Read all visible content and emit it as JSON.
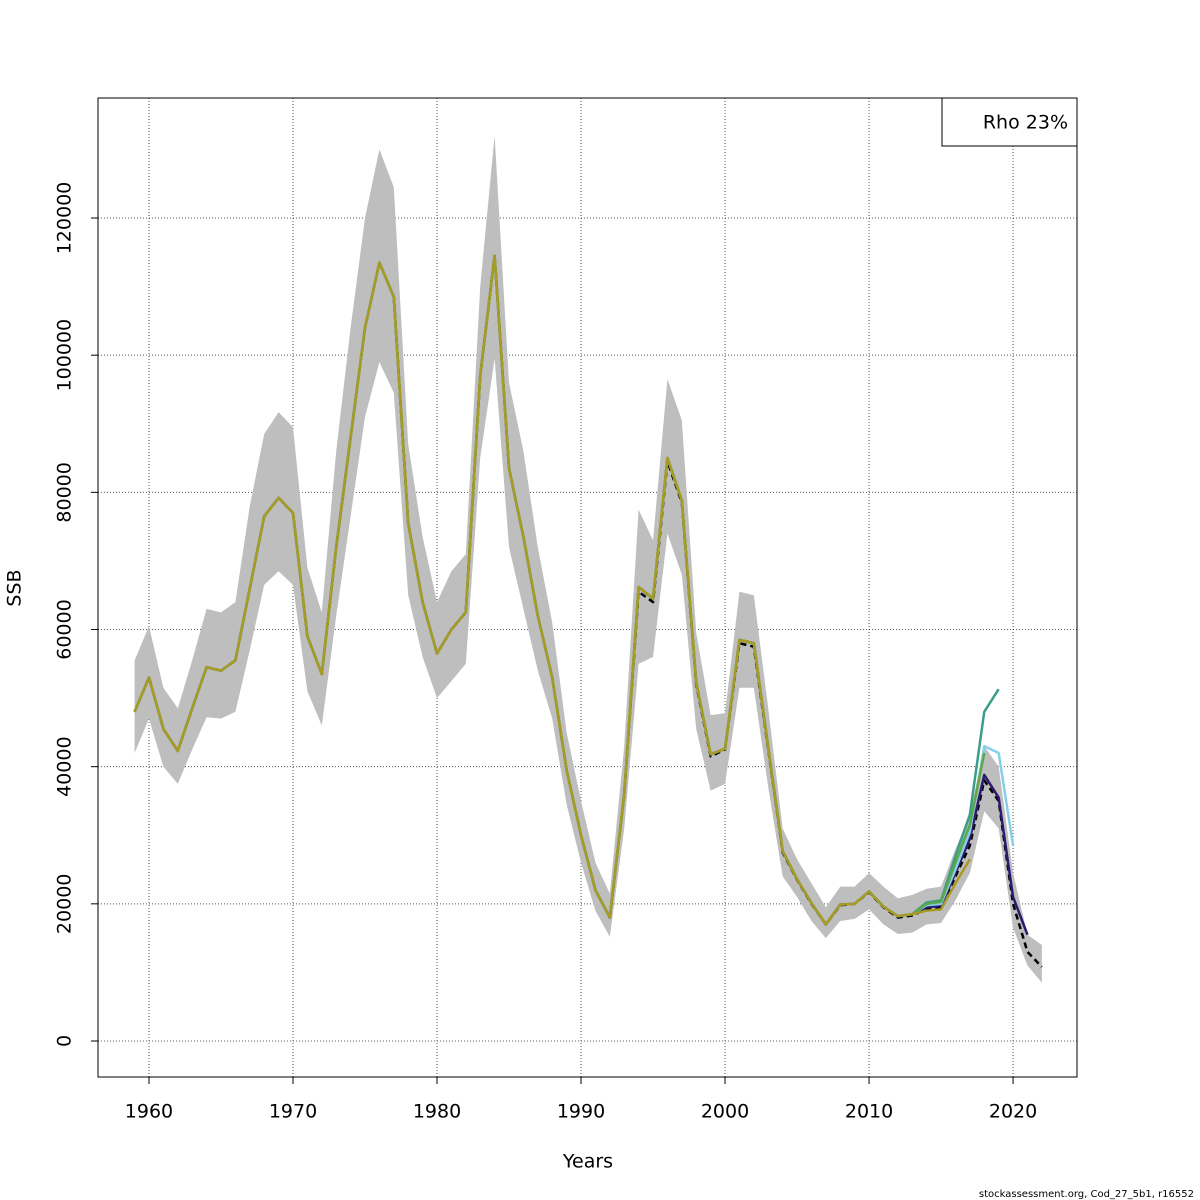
{
  "chart_data": {
    "type": "line",
    "x_label": "Years",
    "y_label": "SSB",
    "legend_text": "Rho 23%",
    "legend_position": "top-right",
    "footer": "stockassessment.org, Cod_27_5b1, r16552",
    "xlim": [
      1956.46,
      2024.44
    ],
    "ylim": [
      -5250,
      137500
    ],
    "xticks": [
      1960,
      1970,
      1980,
      1990,
      2000,
      2010,
      2020
    ],
    "yticks": [
      0,
      20000,
      40000,
      60000,
      80000,
      100000,
      120000
    ],
    "grid": true,
    "band_color": "#bebebe",
    "x": [
      1959,
      1960,
      1961,
      1962,
      1963,
      1964,
      1965,
      1966,
      1967,
      1968,
      1969,
      1970,
      1971,
      1972,
      1973,
      1974,
      1975,
      1976,
      1977,
      1978,
      1979,
      1980,
      1981,
      1982,
      1983,
      1984,
      1985,
      1986,
      1987,
      1988,
      1989,
      1990,
      1991,
      1992,
      1993,
      1994,
      1995,
      1996,
      1997,
      1998,
      1999,
      2000,
      2001,
      2002,
      2003,
      2004,
      2005,
      2006,
      2007,
      2008,
      2009,
      2010,
      2011,
      2012,
      2013,
      2014,
      2015,
      2016,
      2017,
      2018,
      2019,
      2020,
      2021,
      2022
    ],
    "ci_upper": [
      55500,
      60500,
      51500,
      48500,
      55500,
      63000,
      62500,
      64000,
      78000,
      88500,
      91700,
      89500,
      69000,
      62500,
      86000,
      104000,
      120000,
      130000,
      124500,
      87000,
      73500,
      64000,
      68500,
      71000,
      110000,
      132000,
      96000,
      86000,
      72000,
      61000,
      45000,
      35000,
      26000,
      21500,
      43000,
      77500,
      73000,
      96500,
      90500,
      59500,
      47500,
      47800,
      65500,
      65000,
      48500,
      31000,
      26500,
      23000,
      19500,
      22500,
      22500,
      24500,
      22500,
      20800,
      21300,
      22200,
      22500,
      28000,
      33000,
      43000,
      40000,
      24500,
      15500,
      14000
    ],
    "ci_lower": [
      42000,
      47000,
      40000,
      37500,
      42500,
      47200,
      47000,
      48000,
      57000,
      66500,
      68500,
      66500,
      51000,
      46000,
      62000,
      76500,
      91000,
      99000,
      94500,
      65000,
      56000,
      50000,
      52500,
      55000,
      85000,
      99500,
      72000,
      63000,
      54000,
      47000,
      34500,
      26000,
      19000,
      15200,
      31000,
      55000,
      56000,
      74000,
      68000,
      45500,
      36500,
      37500,
      51500,
      51500,
      37000,
      24000,
      21000,
      17500,
      15000,
      17500,
      17800,
      19200,
      17000,
      15600,
      15800,
      17000,
      17200,
      20500,
      24500,
      33500,
      31000,
      16500,
      11000,
      8500
    ],
    "series": [
      {
        "color": "#000000",
        "dashed": true,
        "values": [
          48000,
          53000,
          45500,
          42300,
          48500,
          54500,
          54000,
          55500,
          66000,
          76500,
          79200,
          77000,
          59000,
          53500,
          72000,
          88000,
          104000,
          113500,
          108500,
          75500,
          64000,
          56500,
          60000,
          62500,
          97000,
          114500,
          83500,
          73500,
          62000,
          53000,
          39500,
          30000,
          22000,
          18000,
          36000,
          65500,
          64000,
          84500,
          78500,
          52000,
          41500,
          42500,
          58000,
          57500,
          42500,
          27500,
          23500,
          20000,
          17000,
          19800,
          20000,
          21700,
          19500,
          18000,
          18300,
          19200,
          19500,
          24000,
          28500,
          38000,
          35000,
          20000,
          13000,
          10800
        ]
      },
      {
        "color": "#2b1a6e",
        "values": [
          48000,
          53000,
          45500,
          42300,
          48500,
          54500,
          54000,
          55500,
          66000,
          76500,
          79200,
          77000,
          59000,
          53500,
          72000,
          88000,
          104000,
          113500,
          108500,
          75500,
          64000,
          56500,
          60000,
          62500,
          97000,
          114500,
          83500,
          73500,
          62000,
          53000,
          39500,
          30000,
          22000,
          18000,
          36000,
          66200,
          64500,
          85000,
          78800,
          52300,
          41800,
          42600,
          58500,
          58000,
          42800,
          27700,
          23600,
          20100,
          17000,
          19900,
          20000,
          21800,
          19600,
          18200,
          18500,
          19500,
          19700,
          24500,
          29500,
          38800,
          35500,
          21000,
          15500,
          null
        ]
      },
      {
        "color": "#87cfe8",
        "values": [
          48000,
          53000,
          45500,
          42300,
          48500,
          54500,
          54000,
          55500,
          66000,
          76500,
          79200,
          77000,
          59000,
          53500,
          72000,
          88000,
          104000,
          113500,
          108500,
          75500,
          64000,
          56500,
          60000,
          62500,
          97000,
          114500,
          83500,
          73500,
          62000,
          53000,
          39500,
          30000,
          22000,
          18000,
          36000,
          66200,
          64500,
          85000,
          78800,
          52300,
          41800,
          42600,
          58500,
          58000,
          42800,
          27700,
          23600,
          20100,
          17000,
          19900,
          20000,
          21800,
          19600,
          18200,
          18500,
          19800,
          20000,
          25000,
          30500,
          43000,
          42000,
          28500,
          null,
          null
        ]
      },
      {
        "color": "#3a9e8a",
        "values": [
          48000,
          53000,
          45500,
          42300,
          48500,
          54500,
          54000,
          55500,
          66000,
          76500,
          79200,
          77000,
          59000,
          53500,
          72000,
          88000,
          104000,
          113500,
          108500,
          75500,
          64000,
          56500,
          60000,
          62500,
          97000,
          114500,
          83500,
          73500,
          62000,
          53000,
          39500,
          30000,
          22000,
          18000,
          36000,
          66200,
          64500,
          85000,
          78800,
          52300,
          41800,
          42600,
          58500,
          58000,
          42800,
          27700,
          23600,
          20100,
          17000,
          19900,
          20000,
          21800,
          19600,
          18200,
          18500,
          20200,
          20500,
          27000,
          33000,
          48000,
          51300,
          null,
          null,
          null
        ]
      },
      {
        "color": "#5aa84a",
        "values": [
          48000,
          53000,
          45500,
          42300,
          48500,
          54500,
          54000,
          55500,
          66000,
          76500,
          79200,
          77000,
          59000,
          53500,
          72000,
          88000,
          104000,
          113500,
          108500,
          75500,
          64000,
          56500,
          60000,
          62500,
          97000,
          114500,
          83500,
          73500,
          62000,
          53000,
          39500,
          30000,
          22000,
          18000,
          36000,
          66200,
          64500,
          85000,
          78800,
          52300,
          41800,
          42600,
          58500,
          58000,
          42800,
          27700,
          23600,
          20100,
          17000,
          19900,
          20000,
          21800,
          19600,
          18200,
          18500,
          20000,
          20300,
          26000,
          31500,
          42000,
          null,
          null,
          null,
          null
        ]
      },
      {
        "color": "#a89a22",
        "values": [
          48000,
          53000,
          45500,
          42300,
          48500,
          54500,
          54000,
          55500,
          66000,
          76500,
          79200,
          77000,
          59000,
          53500,
          72000,
          88000,
          104000,
          113500,
          108500,
          75500,
          64000,
          56500,
          60000,
          62500,
          97000,
          114500,
          83500,
          73500,
          62000,
          53000,
          39500,
          30000,
          22000,
          18000,
          36000,
          66200,
          64500,
          85000,
          78800,
          52300,
          41800,
          42600,
          58500,
          58000,
          42800,
          27700,
          23600,
          20100,
          17000,
          19900,
          20000,
          21800,
          19600,
          18200,
          18500,
          19000,
          19200,
          23000,
          26500,
          null,
          null,
          null,
          null,
          null
        ]
      }
    ]
  }
}
